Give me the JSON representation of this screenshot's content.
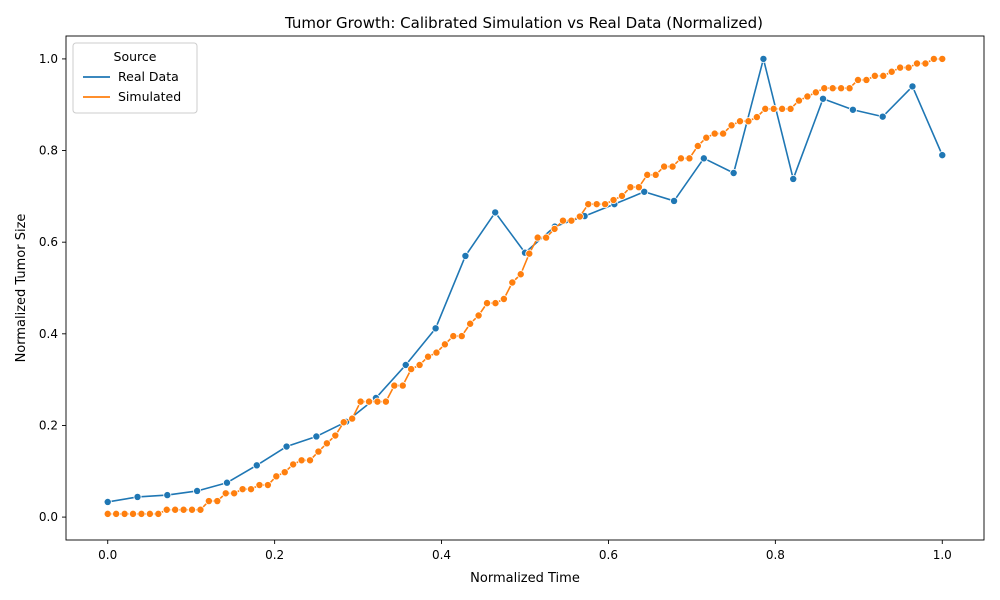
{
  "chart_data": {
    "type": "line",
    "title": "Tumor Growth: Calibrated Simulation vs Real Data (Normalized)",
    "xlabel": "Normalized Time",
    "ylabel": "Normalized Tumor Size",
    "xlim": [
      -0.05,
      1.05
    ],
    "ylim": [
      -0.05,
      1.05
    ],
    "xticks": [
      0.0,
      0.2,
      0.4,
      0.6,
      0.8,
      1.0
    ],
    "xtick_labels": [
      "0.0",
      "0.2",
      "0.4",
      "0.6",
      "0.8",
      "1.0"
    ],
    "yticks": [
      0.0,
      0.2,
      0.4,
      0.6,
      0.8,
      1.0
    ],
    "ytick_labels": [
      "0.0",
      "0.2",
      "0.4",
      "0.6",
      "0.8",
      "1.0"
    ],
    "grid": false,
    "legend": {
      "title": "Source",
      "placement": "top-left",
      "entries": [
        "Real Data",
        "Simulated"
      ]
    },
    "series": [
      {
        "name": "Real Data",
        "color": "#1f77b4",
        "x": [
          0.0,
          0.0357,
          0.0714,
          0.1071,
          0.1429,
          0.1786,
          0.2143,
          0.25,
          0.2857,
          0.3214,
          0.3571,
          0.3929,
          0.4286,
          0.4643,
          0.5,
          0.5357,
          0.5714,
          0.6071,
          0.6429,
          0.6786,
          0.7143,
          0.75,
          0.7857,
          0.8214,
          0.8571,
          0.8929,
          0.9286,
          0.9643,
          1.0
        ],
        "y": [
          0.033,
          0.044,
          0.048,
          0.057,
          0.075,
          0.113,
          0.154,
          0.176,
          0.208,
          0.26,
          0.332,
          0.412,
          0.57,
          0.665,
          0.577,
          0.634,
          0.657,
          0.683,
          0.71,
          0.69,
          0.783,
          0.751,
          1.0,
          0.738,
          0.913,
          0.889,
          0.874,
          0.94,
          0.79
        ]
      },
      {
        "name": "Simulated",
        "color": "#ff7f0e",
        "x": [
          0.0,
          0.0101,
          0.0202,
          0.0303,
          0.0404,
          0.0505,
          0.0606,
          0.0707,
          0.0808,
          0.0909,
          0.101,
          0.1111,
          0.1212,
          0.1313,
          0.1414,
          0.1515,
          0.1616,
          0.1717,
          0.1818,
          0.1919,
          0.202,
          0.2121,
          0.2222,
          0.2323,
          0.2424,
          0.2525,
          0.2626,
          0.2727,
          0.2828,
          0.2929,
          0.303,
          0.3131,
          0.3232,
          0.3333,
          0.3434,
          0.3535,
          0.3636,
          0.3737,
          0.3838,
          0.3939,
          0.404,
          0.4141,
          0.4242,
          0.4343,
          0.4444,
          0.4545,
          0.4646,
          0.4747,
          0.4848,
          0.4949,
          0.5051,
          0.5152,
          0.5253,
          0.5354,
          0.5455,
          0.5556,
          0.5657,
          0.5758,
          0.5859,
          0.596,
          0.6061,
          0.6162,
          0.6263,
          0.6364,
          0.6465,
          0.6566,
          0.6667,
          0.6768,
          0.6869,
          0.697,
          0.7071,
          0.7172,
          0.7273,
          0.7374,
          0.7475,
          0.7576,
          0.7677,
          0.7778,
          0.7879,
          0.798,
          0.8081,
          0.8182,
          0.8283,
          0.8384,
          0.8485,
          0.8586,
          0.8687,
          0.8788,
          0.8889,
          0.899,
          0.9091,
          0.9192,
          0.9293,
          0.9394,
          0.9495,
          0.9596,
          0.9697,
          0.9798,
          0.9899,
          1.0
        ],
        "y": [
          0.007,
          0.007,
          0.007,
          0.007,
          0.007,
          0.007,
          0.007,
          0.016,
          0.016,
          0.016,
          0.016,
          0.016,
          0.035,
          0.035,
          0.052,
          0.052,
          0.061,
          0.061,
          0.07,
          0.07,
          0.089,
          0.098,
          0.115,
          0.124,
          0.124,
          0.143,
          0.161,
          0.178,
          0.207,
          0.215,
          0.252,
          0.252,
          0.252,
          0.252,
          0.287,
          0.287,
          0.323,
          0.332,
          0.35,
          0.359,
          0.377,
          0.395,
          0.395,
          0.422,
          0.44,
          0.467,
          0.467,
          0.476,
          0.512,
          0.53,
          0.575,
          0.61,
          0.61,
          0.629,
          0.647,
          0.647,
          0.656,
          0.683,
          0.683,
          0.683,
          0.692,
          0.701,
          0.72,
          0.72,
          0.747,
          0.747,
          0.765,
          0.765,
          0.783,
          0.783,
          0.81,
          0.828,
          0.837,
          0.837,
          0.855,
          0.864,
          0.864,
          0.873,
          0.891,
          0.891,
          0.891,
          0.891,
          0.909,
          0.918,
          0.927,
          0.936,
          0.936,
          0.936,
          0.936,
          0.954,
          0.954,
          0.963,
          0.963,
          0.972,
          0.981,
          0.981,
          0.99,
          0.99,
          1.0,
          1.0
        ]
      }
    ]
  }
}
